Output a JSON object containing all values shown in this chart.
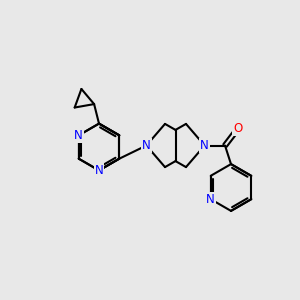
{
  "background_color": "#e8e8e8",
  "bond_color": "#000000",
  "bond_width": 1.5,
  "atom_colors": {
    "N": "#0000ff",
    "O": "#ff0000"
  },
  "font_size": 8.5
}
